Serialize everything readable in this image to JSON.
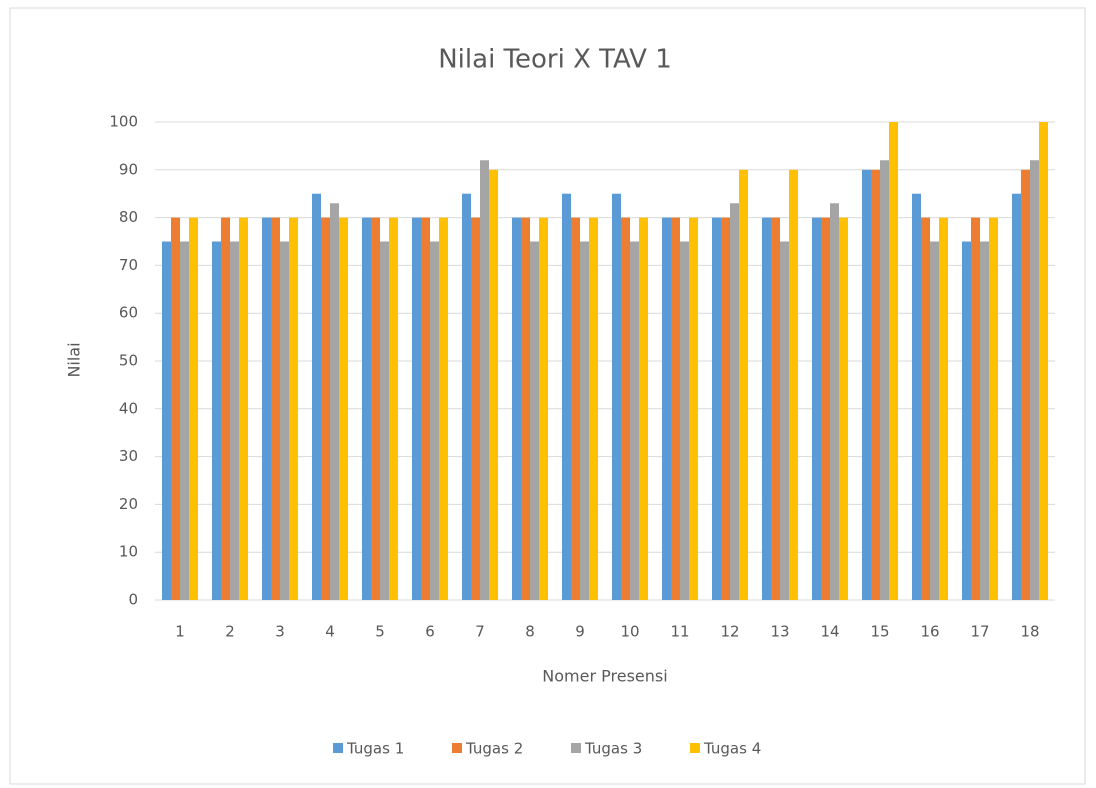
{
  "chart_data": {
    "type": "bar",
    "title": "Nilai Teori X TAV 1",
    "x_label": "Nomer Presensi",
    "y_label": "Nilai",
    "categories": [
      "1",
      "2",
      "3",
      "4",
      "5",
      "6",
      "7",
      "8",
      "9",
      "10",
      "11",
      "12",
      "13",
      "14",
      "15",
      "16",
      "17",
      "18"
    ],
    "series": [
      {
        "name": "Tugas 1",
        "color": "#5b9bd5",
        "values": [
          75,
          75,
          80,
          85,
          80,
          80,
          85,
          80,
          85,
          85,
          80,
          80,
          80,
          80,
          90,
          85,
          75,
          85
        ]
      },
      {
        "name": "Tugas 2",
        "color": "#ed7d31",
        "values": [
          80,
          80,
          80,
          80,
          80,
          80,
          80,
          80,
          80,
          80,
          80,
          80,
          80,
          80,
          90,
          80,
          80,
          90
        ]
      },
      {
        "name": "Tugas 3",
        "color": "#a5a5a5",
        "values": [
          75,
          75,
          75,
          83,
          75,
          75,
          92,
          75,
          75,
          75,
          75,
          83,
          75,
          83,
          92,
          75,
          75,
          92
        ]
      },
      {
        "name": "Tugas 4",
        "color": "#ffc000",
        "values": [
          80,
          80,
          80,
          80,
          80,
          80,
          90,
          80,
          80,
          80,
          80,
          90,
          90,
          80,
          100,
          80,
          80,
          100
        ]
      }
    ],
    "ylim": [
      0,
      100
    ],
    "yticks": [
      0,
      10,
      20,
      30,
      40,
      50,
      60,
      70,
      80,
      90,
      100
    ],
    "grid": true,
    "legend": "bottom"
  }
}
